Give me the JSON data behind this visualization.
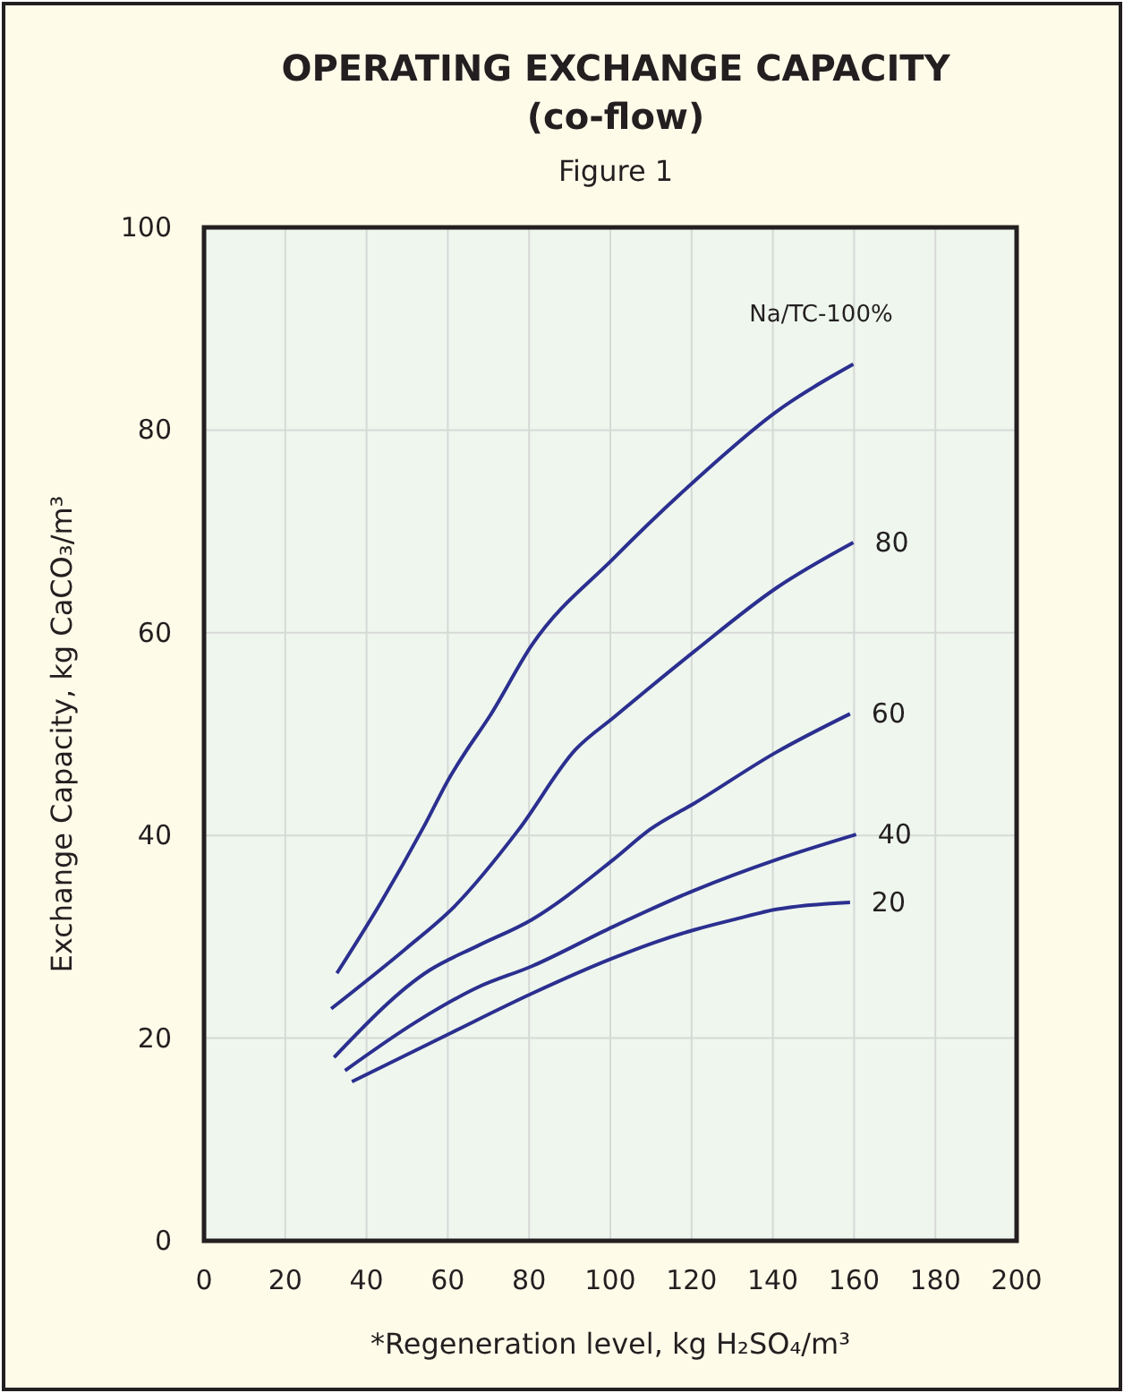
{
  "chart_data": {
    "type": "line",
    "title": "OPERATING EXCHANGE CAPACITY",
    "subtitle": "(co-flow)",
    "annotations": [
      "Figure 1"
    ],
    "xlabel": "*Regeneration level, kg H₂SO₄/m³",
    "ylabel": "Exchange Capacity, kg CaCO₃/m³",
    "xlim": [
      0,
      200
    ],
    "xticks": [
      0,
      20,
      40,
      60,
      80,
      100,
      120,
      140,
      160,
      180,
      200
    ],
    "ylim": [
      0,
      100
    ],
    "yticks": [
      0,
      20,
      40,
      60,
      80,
      100
    ],
    "grid": true,
    "marker": "none",
    "line_style": "solid",
    "series": [
      {
        "name": "Na/TC-100%",
        "color": "#2b2f8f",
        "x": [
          32.7,
          43.7,
          54,
          60.7,
          64.3,
          70.2,
          80.7,
          100.7,
          120.8,
          140.8,
          159.8
        ],
        "values": [
          26.4,
          33.5,
          40.8,
          45.9,
          48.2,
          51.7,
          58.8,
          67.3,
          75,
          81.8,
          86.5
        ]
      },
      {
        "name": "80",
        "color": "#2b2f8f",
        "x": [
          31.3,
          49.6,
          61.4,
          77.5,
          91.5,
          101,
          120.8,
          140.8,
          159.8
        ],
        "values": [
          22.9,
          28.8,
          32.9,
          40.6,
          48.5,
          51.7,
          58.2,
          64.4,
          68.9
        ]
      },
      {
        "name": "60",
        "color": "#2b2f8f",
        "x": [
          32,
          55.5,
          67.3,
          80.7,
          100.7,
          109.8,
          120.8,
          140.8,
          159
        ],
        "values": [
          18.1,
          26.7,
          29.1,
          31.7,
          37.6,
          40.6,
          43.2,
          48.2,
          52
        ]
      },
      {
        "name": "40",
        "color": "#2b2f8f",
        "x": [
          34.7,
          52.6,
          67.3,
          80.7,
          100.7,
          120.8,
          140.8,
          160.5
        ],
        "values": [
          16.8,
          21.7,
          25,
          27.1,
          31,
          34.6,
          37.6,
          40.1
        ]
      },
      {
        "name": "20",
        "color": "#2b2f8f",
        "x": [
          36.4,
          60.7,
          80.7,
          100.7,
          111.3,
          120.8,
          130.4,
          140.8,
          159
        ],
        "values": [
          15.7,
          20.5,
          24.4,
          27.9,
          29.5,
          30.7,
          31.7,
          32.7,
          33.4
        ]
      }
    ]
  }
}
